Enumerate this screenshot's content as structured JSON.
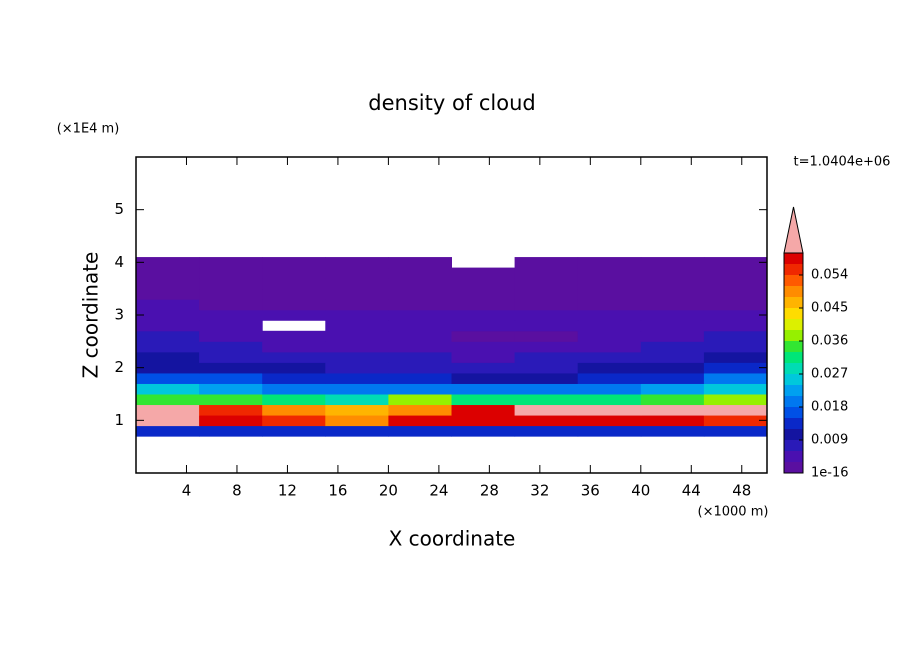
{
  "chart_data": {
    "type": "heatmap",
    "title": "density of cloud",
    "x_label": "X coordinate",
    "y_label": "Z coordinate",
    "x_unit": "(×1000 m)",
    "y_unit": "(×1E4 m)",
    "annotation": "t=1.0404e+06",
    "xlim": [
      0,
      50
    ],
    "ylim": [
      0,
      6
    ],
    "xticks": [
      4,
      8,
      12,
      16,
      20,
      24,
      28,
      32,
      36,
      40,
      44,
      48
    ],
    "yticks": [
      1,
      2,
      3,
      4,
      5
    ],
    "x": [
      0,
      5,
      10,
      15,
      20,
      25,
      30,
      35,
      40,
      45,
      50
    ],
    "y": [
      0.7,
      0.9,
      1.1,
      1.3,
      1.5,
      1.7,
      1.9,
      2.1,
      2.3,
      2.5,
      2.7,
      2.9,
      3.1,
      3.3,
      3.5,
      3.7,
      3.9,
      4.1
    ],
    "z": [
      [
        0.012,
        0.012,
        0.012,
        0.012,
        0.012,
        0.012,
        0.012,
        0.012,
        0.012,
        0.012
      ],
      [
        0.065,
        0.058,
        0.056,
        0.05,
        0.057,
        0.058,
        0.059,
        0.057,
        0.058,
        0.056
      ],
      [
        0.065,
        0.055,
        0.048,
        0.045,
        0.05,
        0.058,
        0.065,
        0.065,
        0.065,
        0.065
      ],
      [
        0.035,
        0.033,
        0.03,
        0.028,
        0.036,
        0.03,
        0.03,
        0.03,
        0.033,
        0.038
      ],
      [
        0.024,
        0.022,
        0.02,
        0.018,
        0.02,
        0.019,
        0.019,
        0.02,
        0.022,
        0.026
      ],
      [
        0.016,
        0.015,
        0.013,
        0.013,
        0.012,
        0.011,
        0.011,
        0.012,
        0.014,
        0.018
      ],
      [
        0.011,
        0.01,
        0.009,
        0.008,
        0.008,
        0.008,
        0.008,
        0.009,
        0.01,
        0.012
      ],
      [
        0.009,
        0.008,
        0.007,
        0.006,
        0.006,
        0.005,
        0.006,
        0.007,
        0.008,
        0.009
      ],
      [
        0.007,
        0.006,
        0.005,
        0.005,
        0.004,
        0.004,
        0.004,
        0.005,
        0.006,
        0.007
      ],
      [
        0.006,
        0.005,
        0.004,
        0.004,
        0.004,
        0.002,
        0.002,
        0.004,
        0.005,
        0.006
      ],
      [
        0.005,
        0.004,
        null,
        0.004,
        0.004,
        0.004,
        0.004,
        0.004,
        0.004,
        0.005
      ],
      [
        0.004,
        0.004,
        0.004,
        0.004,
        0.004,
        0.004,
        0.004,
        0.004,
        0.004,
        0.004
      ],
      [
        0.003,
        0.002,
        0.002,
        0.002,
        0.002,
        0.002,
        0.002,
        0.002,
        0.002,
        0.002
      ],
      [
        0.001,
        0.001,
        0.001,
        0.001,
        0.001,
        0.001,
        0.001,
        0.001,
        0.001,
        0.001
      ],
      [
        0.001,
        0.001,
        0.001,
        0.001,
        0.001,
        0.001,
        0.001,
        0.001,
        0.001,
        0.001
      ],
      [
        0.001,
        0.001,
        0.001,
        0.001,
        0.001,
        0.001,
        0.001,
        0.001,
        0.001,
        0.001
      ],
      [
        0.001,
        0.001,
        0.001,
        0.001,
        0.001,
        null,
        0.001,
        0.001,
        0.001,
        0.001
      ]
    ],
    "levels": [
      1e-16,
      0.003,
      0.006,
      0.009,
      0.012,
      0.015,
      0.018,
      0.021,
      0.024,
      0.027,
      0.03,
      0.033,
      0.036,
      0.039,
      0.042,
      0.045,
      0.048,
      0.051,
      0.054,
      0.057,
      0.06
    ],
    "colors": [
      "#5a0fa0",
      "#4a10b0",
      "#2a1ab8",
      "#1414a0",
      "#0a28c8",
      "#0050e6",
      "#0078f0",
      "#00a0f0",
      "#00c8dc",
      "#00dcb4",
      "#00e678",
      "#32e632",
      "#96f000",
      "#dcf000",
      "#ffdc00",
      "#ffb400",
      "#ff8c00",
      "#ff5a00",
      "#f02800",
      "#dc0000"
    ],
    "over_color": "#f5a8a8",
    "colorbar_ticks": [
      1e-16,
      0.009,
      0.018,
      0.027,
      0.036,
      0.045,
      0.054
    ]
  }
}
